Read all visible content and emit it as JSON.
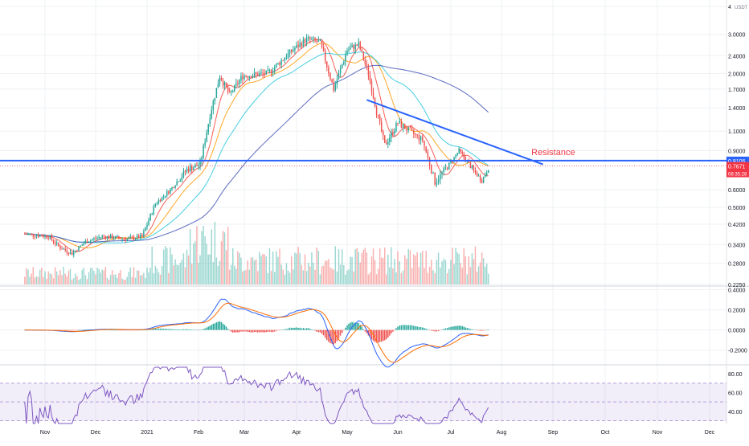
{
  "chart_data": {
    "type": "candlestick",
    "symbol_currency": "USDT",
    "x_ticks": [
      "Nov",
      "Dec",
      "2021",
      "Feb",
      "Mar",
      "Apr",
      "May",
      "Jun",
      "Jul",
      "Aug",
      "Sep",
      "Oct",
      "Nov",
      "Dec"
    ],
    "price_axis": {
      "scale": "log",
      "range": [
        0.225,
        4.0
      ],
      "ticks": [
        "4",
        "3.0000",
        "2.4000",
        "2.0000",
        "1.7000",
        "1.4000",
        "1.1000",
        "0.9000",
        "0.6000",
        "0.5000",
        "0.4200",
        "0.3400",
        "0.2800",
        "0.2250"
      ]
    },
    "price_badges": [
      {
        "value": "0.8106",
        "color": "#2962ff"
      },
      {
        "value": "0.7671",
        "sub": "08:35:28",
        "color": "#f23645"
      }
    ],
    "price_anchors": [
      [
        "2020-10-20",
        0.38
      ],
      [
        "2020-11-03",
        0.37
      ],
      [
        "2020-11-10",
        0.33
      ],
      [
        "2020-11-17",
        0.31
      ],
      [
        "2020-11-25",
        0.35
      ],
      [
        "2020-12-05",
        0.37
      ],
      [
        "2020-12-20",
        0.36
      ],
      [
        "2020-12-29",
        0.37
      ],
      [
        "2021-01-06",
        0.52
      ],
      [
        "2021-01-15",
        0.6
      ],
      [
        "2021-01-25",
        0.74
      ],
      [
        "2021-02-02",
        0.78
      ],
      [
        "2021-02-08",
        1.3
      ],
      [
        "2021-02-14",
        1.95
      ],
      [
        "2021-02-20",
        1.6
      ],
      [
        "2021-02-28",
        1.95
      ],
      [
        "2021-03-15",
        2.0
      ],
      [
        "2021-03-31",
        2.6
      ],
      [
        "2021-04-07",
        2.85
      ],
      [
        "2021-04-15",
        2.75
      ],
      [
        "2021-04-23",
        1.7
      ],
      [
        "2021-05-01",
        2.55
      ],
      [
        "2021-05-08",
        2.7
      ],
      [
        "2021-05-14",
        2.0
      ],
      [
        "2021-05-19",
        1.35
      ],
      [
        "2021-05-24",
        0.95
      ],
      [
        "2021-06-01",
        1.2
      ],
      [
        "2021-06-15",
        1.0
      ],
      [
        "2021-06-22",
        0.65
      ],
      [
        "2021-06-30",
        0.78
      ],
      [
        "2021-07-06",
        0.9
      ],
      [
        "2021-07-15",
        0.73
      ],
      [
        "2021-07-20",
        0.66
      ],
      [
        "2021-07-24",
        0.75
      ]
    ],
    "moving_average_colors": [
      "#f44336",
      "#ff9800",
      "#26c6da",
      "#3f51b5",
      "#9c27b0"
    ],
    "annotations": [
      {
        "text": "Resistance",
        "color": "#f23645"
      }
    ],
    "horizontal_level": {
      "value": 0.8106,
      "color": "#2962ff"
    },
    "trendline": {
      "from": [
        "2021-05-13",
        1.52
      ],
      "to": [
        "2021-08-26",
        0.78
      ],
      "color": "#2962ff"
    },
    "macd": {
      "ticks": [
        "0.4000",
        "0.2000",
        "0.0000",
        "-0.2000"
      ],
      "range": [
        -0.33,
        0.42
      ],
      "macd_color": "#2962ff",
      "signal_color": "#ff6d00",
      "hist_up": "#26a69a",
      "hist_down": "#ef5350"
    },
    "rsi": {
      "ticks": [
        "80.00",
        "60.00",
        "40.00"
      ],
      "range": [
        27,
        87
      ],
      "band": [
        30,
        70
      ],
      "color": "#7e57c2"
    },
    "grid": true
  }
}
